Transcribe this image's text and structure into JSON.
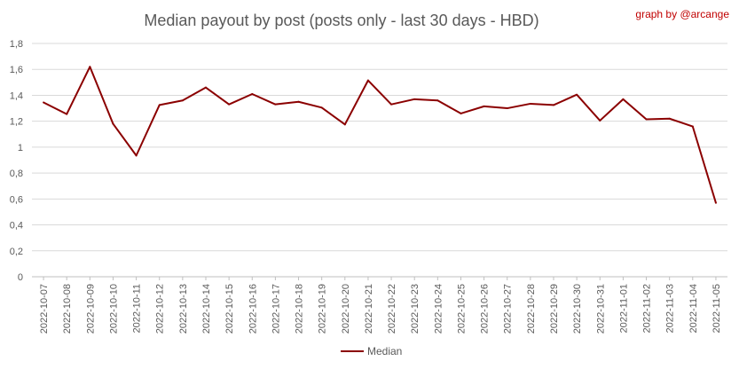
{
  "chart_data": {
    "type": "line",
    "title": "Median payout by post (posts only - last 30 days - HBD)",
    "credit": "graph by @arcange",
    "xlabel": "",
    "ylabel": "",
    "ylim": [
      0,
      1.8
    ],
    "yticks": [
      "0",
      "0,2",
      "0,4",
      "0,6",
      "0,8",
      "1",
      "1,2",
      "1,4",
      "1,6",
      "1,8"
    ],
    "ytick_values": [
      0,
      0.2,
      0.4,
      0.6,
      0.8,
      1.0,
      1.2,
      1.4,
      1.6,
      1.8
    ],
    "grid": true,
    "legend": "bottom",
    "categories": [
      "2022-10-07",
      "2022-10-08",
      "2022-10-09",
      "2022-10-10",
      "2022-10-11",
      "2022-10-12",
      "2022-10-13",
      "2022-10-14",
      "2022-10-15",
      "2022-10-16",
      "2022-10-17",
      "2022-10-18",
      "2022-10-19",
      "2022-10-20",
      "2022-10-21",
      "2022-10-22",
      "2022-10-23",
      "2022-10-24",
      "2022-10-25",
      "2022-10-26",
      "2022-10-27",
      "2022-10-28",
      "2022-10-29",
      "2022-10-30",
      "2022-10-31",
      "2022-11-01",
      "2022-11-02",
      "2022-11-03",
      "2022-11-04",
      "2022-11-05"
    ],
    "series": [
      {
        "name": "Median",
        "color": "#8b0000",
        "values": [
          1.345,
          1.255,
          1.62,
          1.18,
          0.935,
          1.325,
          1.36,
          1.46,
          1.33,
          1.41,
          1.33,
          1.35,
          1.305,
          1.175,
          1.515,
          1.33,
          1.37,
          1.36,
          1.26,
          1.315,
          1.3,
          1.335,
          1.325,
          1.405,
          1.205,
          1.37,
          1.215,
          1.22,
          1.16,
          0.57
        ]
      }
    ]
  }
}
